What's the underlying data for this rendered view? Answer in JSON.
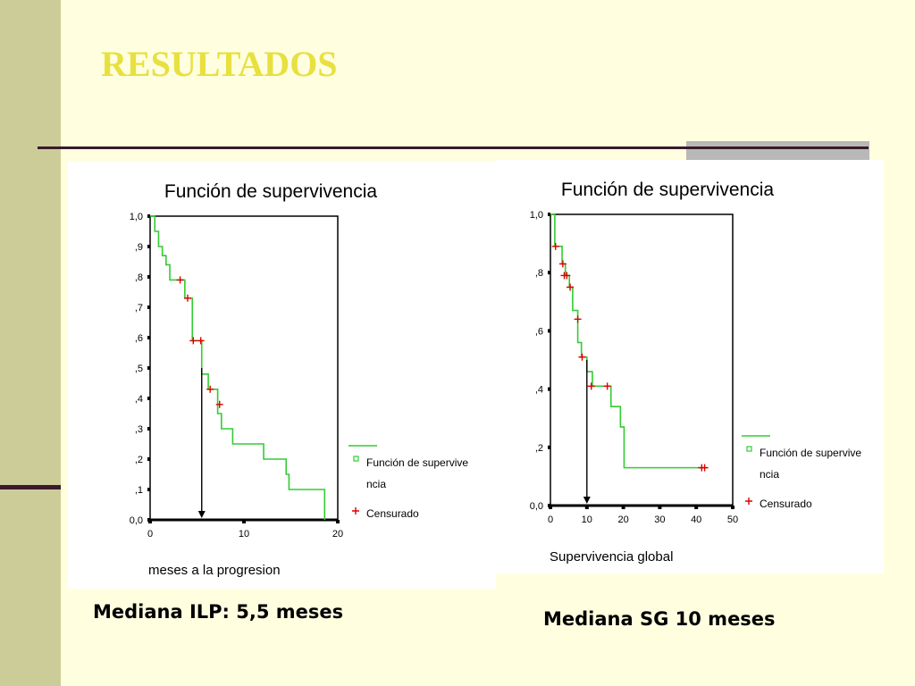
{
  "slide": {
    "title": "RESULTADOS",
    "caption_left": "Mediana ILP: 5,5 meses",
    "caption_right": "Mediana SG 10 meses",
    "title_color": "#e8e040",
    "accent_color": "#cccc99"
  },
  "chart_data": [
    {
      "type": "line",
      "title": "Función de supervivencia",
      "xlabel": "meses a la progresion",
      "ylabel": "",
      "xlim": [
        0,
        20
      ],
      "ylim": [
        0,
        1
      ],
      "xticks": [
        0,
        10,
        20
      ],
      "xtick_labels": [
        "0",
        "10",
        "20"
      ],
      "yticks": [
        0,
        0.1,
        0.2,
        0.3,
        0.4,
        0.5,
        0.6,
        0.7,
        0.8,
        0.9,
        1.0
      ],
      "ytick_labels": [
        "0,0",
        ",1",
        ",2",
        ",3",
        ",4",
        ",5",
        ",6",
        ",7",
        ",8",
        ",9",
        "1,0"
      ],
      "series": [
        {
          "name": "Función de supervivencia",
          "color": "#33cc33",
          "steps": [
            [
              0,
              1.0
            ],
            [
              0.5,
              0.95
            ],
            [
              0.9,
              0.9
            ],
            [
              1.3,
              0.87
            ],
            [
              1.7,
              0.84
            ],
            [
              2.1,
              0.79
            ],
            [
              3.7,
              0.73
            ],
            [
              4.5,
              0.59
            ],
            [
              5.5,
              0.48
            ],
            [
              6.2,
              0.43
            ],
            [
              7.2,
              0.35
            ],
            [
              7.6,
              0.3
            ],
            [
              8.8,
              0.25
            ],
            [
              12.1,
              0.2
            ],
            [
              14.5,
              0.15
            ],
            [
              14.8,
              0.1
            ],
            [
              18.6,
              0.0
            ]
          ],
          "x_end": 18.6
        }
      ],
      "censored": {
        "name": "Censurado",
        "color": "#dd0000",
        "points": [
          [
            3.2,
            0.79
          ],
          [
            4.0,
            0.73
          ],
          [
            4.6,
            0.59
          ],
          [
            5.4,
            0.59
          ],
          [
            6.4,
            0.43
          ],
          [
            7.4,
            0.38
          ]
        ]
      },
      "median_marker": {
        "x": 5.5,
        "y": 0.5
      },
      "legend": {
        "placement": "right",
        "entries": [
          "Función de supervive",
          "ncia",
          "Censurado"
        ]
      }
    },
    {
      "type": "line",
      "title": "Función de supervivencia",
      "xlabel": "Supervivencia global",
      "ylabel": "",
      "xlim": [
        0,
        50
      ],
      "ylim": [
        0,
        1
      ],
      "xticks": [
        0,
        10,
        20,
        30,
        40,
        50
      ],
      "xtick_labels": [
        "0",
        "10",
        "20",
        "30",
        "40",
        "50"
      ],
      "yticks": [
        0,
        0.2,
        0.4,
        0.6,
        0.8,
        1.0
      ],
      "ytick_labels": [
        "0,0",
        ",2",
        ",4",
        ",6",
        ",8",
        "1,0"
      ],
      "series": [
        {
          "name": "Función de supervivencia",
          "color": "#33cc33",
          "steps": [
            [
              0,
              1.0
            ],
            [
              1.2,
              0.89
            ],
            [
              3.2,
              0.83
            ],
            [
              4.1,
              0.79
            ],
            [
              5.2,
              0.75
            ],
            [
              6.1,
              0.67
            ],
            [
              7.5,
              0.56
            ],
            [
              8.5,
              0.51
            ],
            [
              10,
              0.46
            ],
            [
              11.5,
              0.41
            ],
            [
              16.6,
              0.34
            ],
            [
              19.2,
              0.27
            ],
            [
              20.2,
              0.13
            ]
          ],
          "x_end": 43
        }
      ],
      "censored": {
        "name": "Censurado",
        "color": "#dd0000",
        "points": [
          [
            1.4,
            0.89
          ],
          [
            3.4,
            0.83
          ],
          [
            3.8,
            0.79
          ],
          [
            4.5,
            0.79
          ],
          [
            5.4,
            0.75
          ],
          [
            7.5,
            0.64
          ],
          [
            8.7,
            0.51
          ],
          [
            11.2,
            0.41
          ],
          [
            15.6,
            0.41
          ],
          [
            41.5,
            0.13
          ],
          [
            42.3,
            0.13
          ]
        ]
      },
      "median_marker": {
        "x": 10,
        "y": 0.5
      },
      "legend": {
        "placement": "right",
        "entries": [
          "Función de supervive",
          "ncia",
          "Censurado"
        ]
      }
    }
  ]
}
